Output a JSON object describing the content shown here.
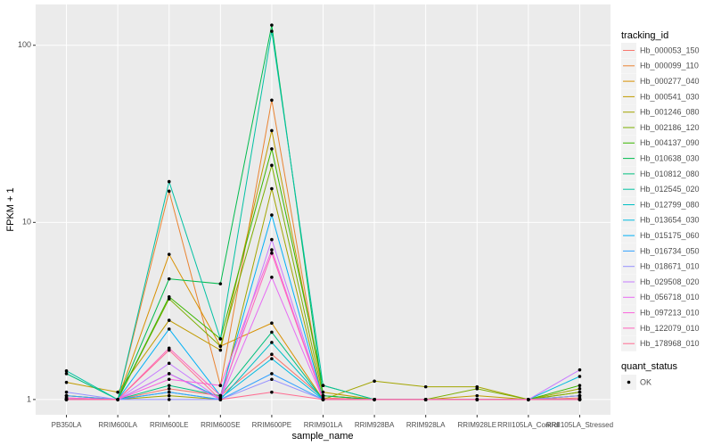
{
  "chart_data": {
    "type": "line",
    "x_label": "sample_name",
    "y_label": "FPKM + 1",
    "log_y": true,
    "grid": true,
    "categories": [
      "PB350LA",
      "RRIM600LA",
      "RRIM600LE",
      "RRIM600SE",
      "RRIM600PE",
      "RRIM901LA",
      "RRIM928BA",
      "RRIM928LA",
      "RRIM928LE",
      "RRII105LA_Control",
      "RRII105LA_Stressed"
    ],
    "ylim": [
      0.82,
      170
    ],
    "yticks": [
      1,
      10,
      100
    ],
    "legend_title": "tracking_id",
    "legend_position": "right",
    "shape_legend": {
      "title": "quant_status",
      "labels": [
        "OK"
      ]
    },
    "series": [
      {
        "name": "Hb_000053_150",
        "color": "#F8766D",
        "values": [
          1.02,
          1,
          1.15,
          1.05,
          1.8,
          1.02,
          1,
          1,
          1,
          1,
          1.02
        ]
      },
      {
        "name": "Hb_000099_110",
        "color": "#EA8331",
        "values": [
          1.05,
          1,
          15,
          1.2,
          49,
          1.05,
          1,
          1,
          1,
          1,
          1.05
        ]
      },
      {
        "name": "Hb_000277_040",
        "color": "#D89000",
        "values": [
          1,
          1,
          6.6,
          2,
          2.7,
          1,
          1,
          1,
          1,
          1,
          1
        ]
      },
      {
        "name": "Hb_000541_030",
        "color": "#C09B00",
        "values": [
          1.25,
          1.1,
          2.8,
          1.9,
          33,
          1.1,
          1,
          1,
          1.05,
          1,
          1.1
        ]
      },
      {
        "name": "Hb_001246_080",
        "color": "#A3A500",
        "values": [
          1,
          1,
          1.05,
          1,
          15.5,
          1,
          1.27,
          1.18,
          1.18,
          1,
          1.15
        ]
      },
      {
        "name": "Hb_002186_120",
        "color": "#7CAE00",
        "values": [
          1.05,
          1,
          3.7,
          2,
          21,
          1.05,
          1,
          1,
          1.15,
          1,
          1.1
        ]
      },
      {
        "name": "Hb_004137_090",
        "color": "#39B600",
        "values": [
          1,
          1,
          3.8,
          2.2,
          26,
          1.2,
          1,
          1,
          1,
          1,
          1.2
        ]
      },
      {
        "name": "Hb_010638_030",
        "color": "#00BB4E",
        "values": [
          1,
          1,
          4.8,
          4.5,
          130,
          1.05,
          1,
          1,
          1,
          1,
          1.05
        ]
      },
      {
        "name": "Hb_010812_080",
        "color": "#00BF7D",
        "values": [
          1.4,
          1,
          1.2,
          1.05,
          2.4,
          1,
          1,
          1,
          1,
          1,
          1
        ]
      },
      {
        "name": "Hb_012545_020",
        "color": "#00C1A3",
        "values": [
          1.45,
          1,
          17,
          2.2,
          120,
          1.2,
          1,
          1,
          1,
          1,
          1
        ]
      },
      {
        "name": "Hb_012799_080",
        "color": "#00BFC4",
        "values": [
          1,
          1,
          1.1,
          1,
          2.1,
          1,
          1,
          1,
          1,
          1,
          1
        ]
      },
      {
        "name": "Hb_013654_030",
        "color": "#00BAE0",
        "values": [
          1,
          1,
          1.4,
          1.02,
          1.7,
          1,
          1,
          1,
          1,
          1,
          1.35
        ]
      },
      {
        "name": "Hb_015175_060",
        "color": "#00B0F6",
        "values": [
          1,
          1,
          2.5,
          1.05,
          11,
          1,
          1,
          1,
          1,
          1,
          1
        ]
      },
      {
        "name": "Hb_016734_050",
        "color": "#35A2FF",
        "values": [
          1.05,
          1,
          1.1,
          1,
          1.4,
          1,
          1,
          1,
          1,
          1,
          1
        ]
      },
      {
        "name": "Hb_018671_010",
        "color": "#9590FF",
        "values": [
          1.1,
          1,
          1,
          1,
          1.3,
          1,
          1,
          1,
          1,
          1,
          1.05
        ]
      },
      {
        "name": "Hb_029508_020",
        "color": "#C77CFF",
        "values": [
          1,
          1,
          1.6,
          1,
          8,
          1,
          1,
          1,
          1,
          1,
          1.47
        ]
      },
      {
        "name": "Hb_056718_010",
        "color": "#E76BF3",
        "values": [
          1,
          1,
          1.4,
          1,
          4.9,
          1,
          1,
          1,
          1,
          1,
          1
        ]
      },
      {
        "name": "Hb_097213_010",
        "color": "#FA62DB",
        "values": [
          1.02,
          1,
          1.3,
          1.2,
          7,
          1,
          1,
          1,
          1,
          1,
          1
        ]
      },
      {
        "name": "Hb_122079_010",
        "color": "#FF62BC",
        "values": [
          1,
          1,
          1.95,
          1.05,
          6.7,
          1,
          1,
          1,
          1,
          1,
          1
        ]
      },
      {
        "name": "Hb_178968_010",
        "color": "#FF6C91",
        "values": [
          1,
          1,
          1.9,
          1,
          1.1,
          1,
          1,
          1,
          1,
          1,
          1
        ]
      }
    ]
  }
}
